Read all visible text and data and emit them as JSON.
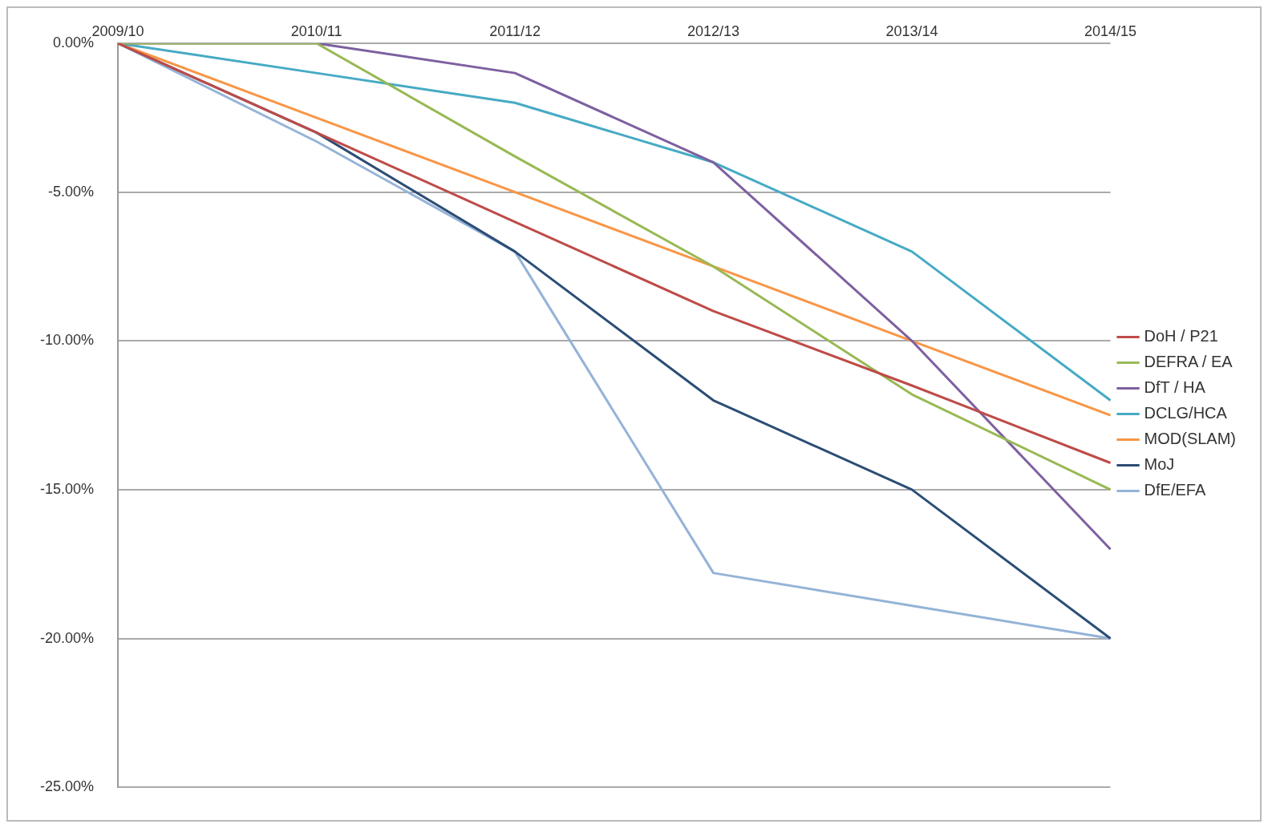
{
  "chart_data": {
    "type": "line",
    "categories": [
      "2009/10",
      "2010/11",
      "2011/12",
      "2012/13",
      "2013/14",
      "2014/15"
    ],
    "series": [
      {
        "name": "DoH / P21",
        "color": "#be4b48",
        "values": [
          0,
          -3,
          -6,
          -9,
          -11.5,
          -14.1
        ]
      },
      {
        "name": "DEFRA / EA",
        "color": "#98b954",
        "values": [
          0,
          0,
          -3.8,
          -7.5,
          -11.8,
          -15
        ]
      },
      {
        "name": "DfT / HA",
        "color": "#7d60a0",
        "values": [
          0,
          0,
          -1,
          -4,
          -10,
          -17
        ]
      },
      {
        "name": "DCLG/HCA",
        "color": "#46aac5",
        "values": [
          0,
          -1,
          -2,
          -4,
          -7,
          -12
        ]
      },
      {
        "name": "MOD(SLAM)",
        "color": "#f79646",
        "values": [
          0,
          -2.5,
          -5,
          -7.5,
          -10,
          -12.5
        ]
      },
      {
        "name": "MoJ",
        "color": "#2c4d75",
        "values": [
          0,
          -3,
          -7,
          -12,
          -15,
          -20
        ]
      },
      {
        "name": "DfE/EFA",
        "color": "#95b3d7",
        "values": [
          0,
          -3.3,
          -7,
          -17.8,
          -18.9,
          -20
        ]
      }
    ],
    "ylim": [
      -25,
      0
    ],
    "yticks": [
      {
        "value": 0,
        "label": "0.00%"
      },
      {
        "value": -5,
        "label": "-5.00%"
      },
      {
        "value": -10,
        "label": "-10.00%"
      },
      {
        "value": -15,
        "label": "-15.00%"
      },
      {
        "value": -20,
        "label": "-20.00%"
      },
      {
        "value": -25,
        "label": "-25.00%"
      }
    ],
    "grid": "y",
    "legend": "right",
    "marker": "none",
    "line_style": "solid"
  }
}
